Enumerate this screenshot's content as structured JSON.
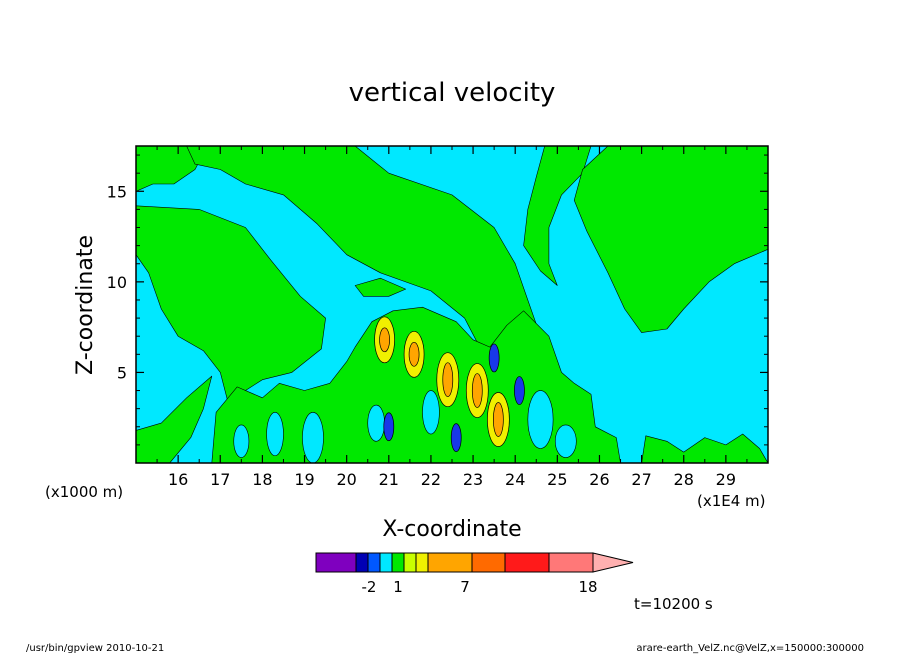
{
  "footer": {
    "left": "/usr/bin/gpview   2010-10-21",
    "right": "arare-earth_VelZ.nc@VelZ,x=150000:300000"
  },
  "time_label": "t=10200 s",
  "colors": {
    "background_field": "#00e8ff",
    "green": "#00e800",
    "yellow": "#f0f000",
    "orange": "#ffa500",
    "blue": "#1838e8",
    "colorbar": [
      "#7f00bf",
      "#0000b4",
      "#0058ff",
      "#00e8ff",
      "#00e800",
      "#c8ff00",
      "#f0f000",
      "#ffa500",
      "#ff6a00",
      "#ff1a1a",
      "#ff7878",
      "#ffb0b0"
    ]
  },
  "chart_data": {
    "type": "heatmap",
    "title": "vertical velocity",
    "xlabel": "X-coordinate",
    "ylabel": "Z-coordinate",
    "x_multiplier_label": "(x1E4 m)",
    "y_multiplier_label": "(x1000 m)",
    "xlim": [
      15.0,
      30.0
    ],
    "ylim": [
      0.0,
      17.5
    ],
    "x_ticks": [
      16,
      17,
      18,
      19,
      20,
      21,
      22,
      23,
      24,
      25,
      26,
      27,
      28,
      29
    ],
    "y_ticks": [
      5,
      10,
      15
    ],
    "colorbar_tick_labels": [
      "-2",
      "1",
      "7",
      "18"
    ],
    "features": [
      {
        "kind": "updraft",
        "x": 20.9,
        "z": 6.8,
        "level": "yellow"
      },
      {
        "kind": "updraft",
        "x": 21.6,
        "z": 6.0,
        "level": "yellow"
      },
      {
        "kind": "updraft",
        "x": 22.4,
        "z": 4.6,
        "level": "orange"
      },
      {
        "kind": "updraft",
        "x": 23.1,
        "z": 4.0,
        "level": "orange"
      },
      {
        "kind": "updraft",
        "x": 23.6,
        "z": 2.4,
        "level": "orange"
      },
      {
        "kind": "downdraft",
        "x": 23.5,
        "z": 5.8,
        "level": "blue"
      },
      {
        "kind": "downdraft",
        "x": 24.1,
        "z": 4.0,
        "level": "blue"
      },
      {
        "kind": "downdraft",
        "x": 21.0,
        "z": 2.0,
        "level": "blue"
      },
      {
        "kind": "downdraft",
        "x": 22.6,
        "z": 1.4,
        "level": "blue"
      }
    ]
  }
}
